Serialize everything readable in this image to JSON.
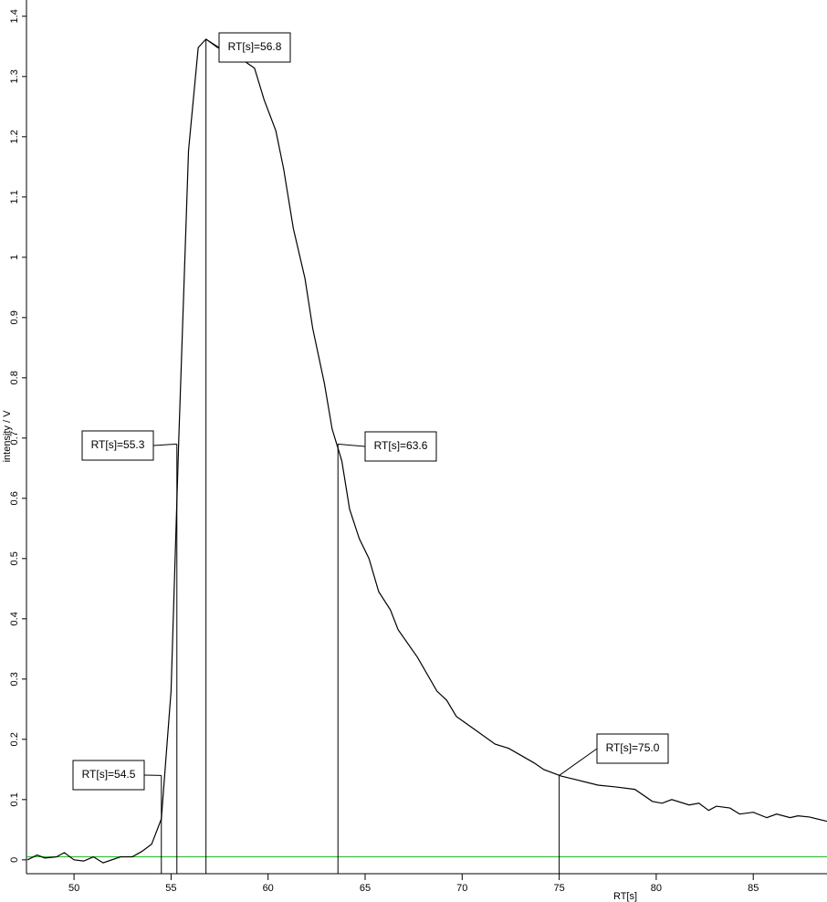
{
  "chart_data": {
    "type": "line",
    "x_label": "RT[s]",
    "y_label": "intensity / V",
    "xlim": [
      47.55,
      88.8
    ],
    "ylim": [
      -0.023,
      1.427
    ],
    "xticks": [
      50,
      55,
      60,
      65,
      70,
      75,
      80,
      85
    ],
    "yticks": [
      0,
      0.1,
      0.2,
      0.3,
      0.4,
      0.5,
      0.6,
      0.7,
      0.8,
      0.9,
      1,
      1.1,
      1.2,
      1.3,
      1.4
    ],
    "baseline": {
      "value": 0.005,
      "color": "#22bb22"
    },
    "series": [
      {
        "color": "#000000",
        "x": [
          47.6,
          48.1,
          48.5,
          49.1,
          49.5,
          50.0,
          50.5,
          51.0,
          51.5,
          52.4,
          53.0,
          53.5,
          54.0,
          54.5,
          55.0,
          55.4,
          55.9,
          56.4,
          56.8,
          57.4,
          58.3,
          59.3,
          59.8,
          60.4,
          60.8,
          61.3,
          61.9,
          62.3,
          62.9,
          63.3,
          63.8,
          64.2,
          64.7,
          65.2,
          65.7,
          66.3,
          66.7,
          67.7,
          68.7,
          69.2,
          69.7,
          70.7,
          71.7,
          72.4,
          73.7,
          74.2,
          75.1,
          76.0,
          77.0,
          77.9,
          78.9,
          79.8,
          80.3,
          80.8,
          81.7,
          82.2,
          82.7,
          83.1,
          83.8,
          84.3,
          85.0,
          85.7,
          86.2,
          86.9,
          87.3,
          87.9,
          88.8
        ],
        "values": [
          0,
          0.008,
          0.003,
          0.005,
          0.012,
          0,
          -0.002,
          0.005,
          -0.005,
          0.005,
          0.005,
          0.014,
          0.026,
          0.068,
          0.28,
          0.7,
          1.177,
          1.348,
          1.362,
          1.348,
          1.336,
          1.314,
          1.261,
          1.21,
          1.147,
          1.048,
          0.965,
          0.882,
          0.791,
          0.715,
          0.662,
          0.582,
          0.533,
          0.5,
          0.445,
          0.415,
          0.382,
          0.336,
          0.28,
          0.265,
          0.238,
          0.215,
          0.192,
          0.185,
          0.161,
          0.15,
          0.139,
          0.132,
          0.124,
          0.121,
          0.117,
          0.097,
          0.094,
          0.1,
          0.091,
          0.094,
          0.082,
          0.089,
          0.086,
          0.076,
          0.079,
          0.07,
          0.076,
          0.07,
          0.073,
          0.071,
          0.064
        ]
      }
    ],
    "markers": [
      {
        "x": 54.5,
        "y": 0.14,
        "label": "RT[s]=54.5"
      },
      {
        "x": 55.3,
        "y": 0.69,
        "label": "RT[s]=55.3"
      },
      {
        "x": 56.8,
        "y": 1.362,
        "label": "RT[s]=56.8"
      },
      {
        "x": 63.6,
        "y": 0.69,
        "label": "RT[s]=63.6"
      },
      {
        "x": 75.0,
        "y": 0.14,
        "label": "RT[s]=75.0"
      }
    ]
  }
}
